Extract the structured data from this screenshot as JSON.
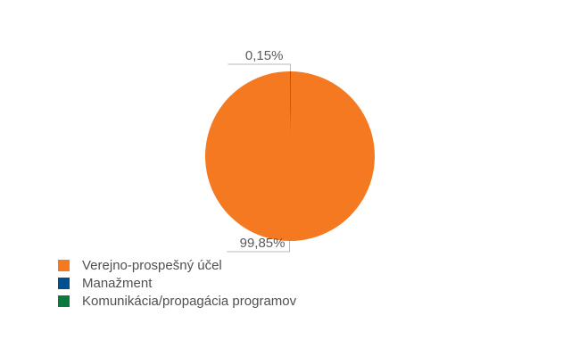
{
  "chart_data": {
    "type": "pie",
    "title": "",
    "slices": [
      {
        "label": "Verejno-prospešný účel",
        "value": 99.85,
        "value_label": "99,85%",
        "color": "#f47920"
      },
      {
        "label": "Manažment",
        "value": 0.0,
        "value_label": "",
        "color": "#00508f"
      },
      {
        "label": "Komunikácia/propagácia programov",
        "value": 0.15,
        "value_label": "0,15%",
        "color": "#0a7a3c"
      }
    ],
    "legend": {
      "position": "bottom-left"
    }
  }
}
